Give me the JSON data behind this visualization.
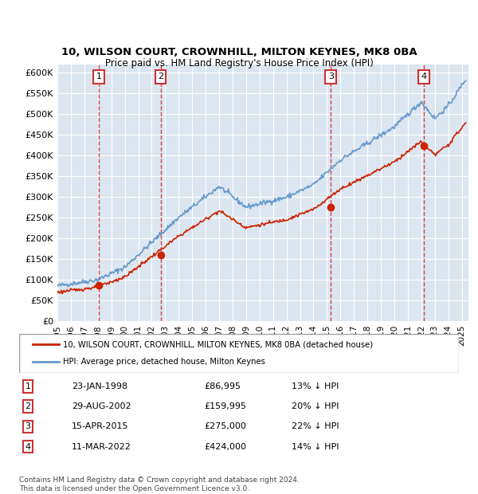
{
  "title1": "10, WILSON COURT, CROWNHILL, MILTON KEYNES, MK8 0BA",
  "title2": "Price paid vs. HM Land Registry's House Price Index (HPI)",
  "ylabel": "",
  "background_color": "#ffffff",
  "plot_bg_color": "#dce6f0",
  "grid_color": "#ffffff",
  "hpi_color": "#6699cc",
  "price_color": "#cc2200",
  "sale_marker_color": "#cc2200",
  "dashed_line_color": "#cc3333",
  "ylim": [
    0,
    620000
  ],
  "yticks": [
    0,
    50000,
    100000,
    150000,
    200000,
    250000,
    300000,
    350000,
    400000,
    450000,
    500000,
    550000,
    600000
  ],
  "ytick_labels": [
    "£0",
    "£50K",
    "£100K",
    "£150K",
    "£200K",
    "£250K",
    "£300K",
    "£350K",
    "£400K",
    "£450K",
    "£500K",
    "£550K",
    "£600K"
  ],
  "sale_points": [
    {
      "label": "1",
      "date_num": 1998.07,
      "price": 86995
    },
    {
      "label": "2",
      "date_num": 2002.66,
      "price": 159995
    },
    {
      "label": "3",
      "date_num": 2015.29,
      "price": 275000
    },
    {
      "label": "4",
      "date_num": 2022.19,
      "price": 424000
    }
  ],
  "table_rows": [
    {
      "num": "1",
      "date": "23-JAN-1998",
      "price": "£86,995",
      "hpi": "13% ↓ HPI"
    },
    {
      "num": "2",
      "date": "29-AUG-2002",
      "price": "£159,995",
      "hpi": "20% ↓ HPI"
    },
    {
      "num": "3",
      "date": "15-APR-2015",
      "price": "£275,000",
      "hpi": "22% ↓ HPI"
    },
    {
      "num": "4",
      "date": "11-MAR-2022",
      "price": "£424,000",
      "hpi": "14% ↓ HPI"
    }
  ],
  "legend_line1": "10, WILSON COURT, CROWNHILL, MILTON KEYNES, MK8 0BA (detached house)",
  "legend_line2": "HPI: Average price, detached house, Milton Keynes",
  "footer": "Contains HM Land Registry data © Crown copyright and database right 2024.\nThis data is licensed under the Open Government Licence v3.0.",
  "xmin": 1995.0,
  "xmax": 2025.5
}
